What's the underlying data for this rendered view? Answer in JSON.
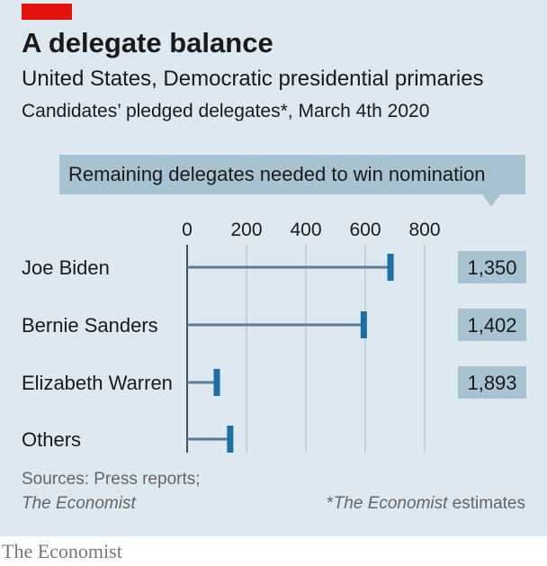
{
  "header": {
    "title": "A delegate balance",
    "subtitle": "United States, Democratic presidential primaries",
    "subtitle2": "Candidates’ pledged delegates*, March 4th 2020"
  },
  "callout": {
    "text": "Remaining delegates needed to win nomination"
  },
  "footer": {
    "source_line1": "Sources: Press reports;",
    "source_line2": "The Economist",
    "note_prefix": "*",
    "note_italic": "The Economist",
    "note_suffix": " estimates",
    "brand": "The Economist"
  },
  "colors": {
    "panel_background": "#dde8f0",
    "accent_red": "#e3120b",
    "bar_line": "#5a7d90",
    "marker": "#1a6fa3",
    "gridline": "#b9cdd8",
    "callout_box": "#a7c3d2"
  },
  "chart_data": {
    "type": "bar",
    "orientation": "horizontal",
    "categories": [
      "Joe Biden",
      "Bernie Sanders",
      "Elizabeth Warren",
      "Others"
    ],
    "series": [
      {
        "values": [
          685,
          595,
          100,
          145
        ]
      }
    ],
    "remaining_needed": [
      "1,350",
      "1,402",
      "1,893",
      ""
    ],
    "xticks": [
      0,
      200,
      400,
      600,
      800
    ],
    "xlim": [
      0,
      825
    ],
    "grid": true
  }
}
